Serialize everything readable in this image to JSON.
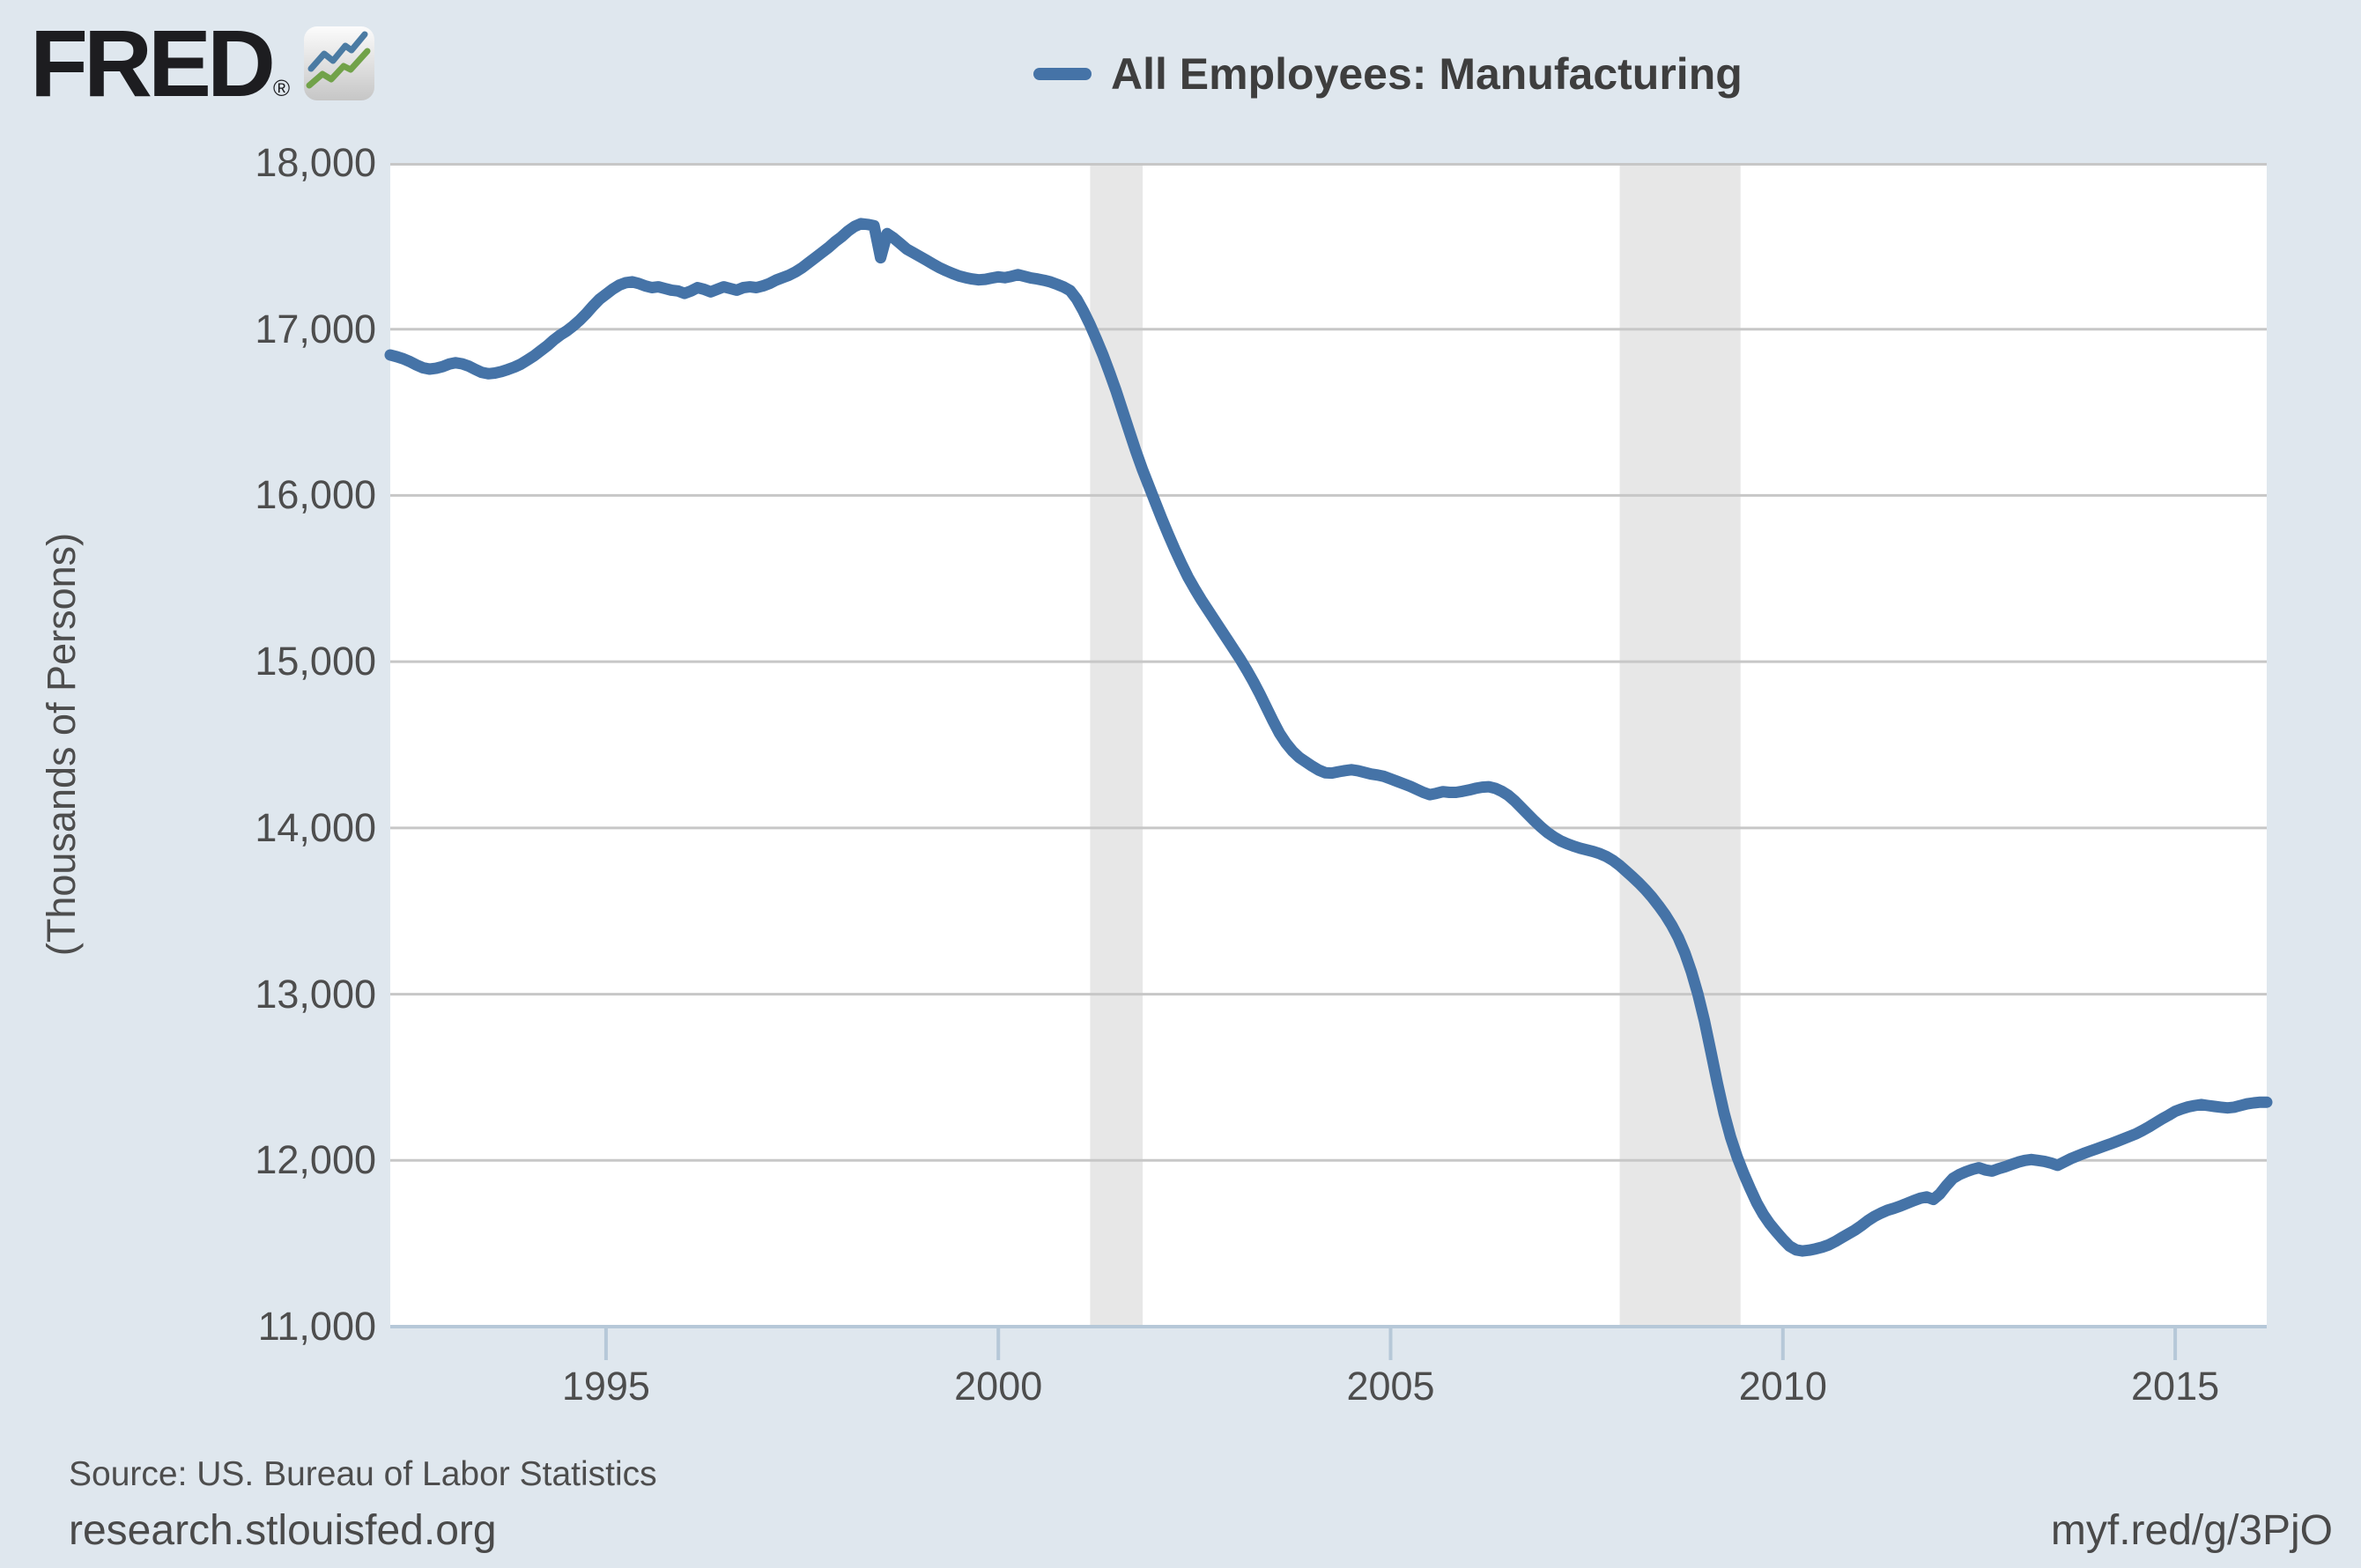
{
  "header": {
    "logo_text": "FRED",
    "logo_registered": "®"
  },
  "legend": {
    "label": "All Employees: Manufacturing",
    "swatch_color": "#4573a7"
  },
  "y_axis": {
    "title": "(Thousands of Persons)",
    "ticks": [
      {
        "value": 18000,
        "label": "18,000"
      },
      {
        "value": 17000,
        "label": "17,000"
      },
      {
        "value": 16000,
        "label": "16,000"
      },
      {
        "value": 15000,
        "label": "15,000"
      },
      {
        "value": 14000,
        "label": "14,000"
      },
      {
        "value": 13000,
        "label": "13,000"
      },
      {
        "value": 12000,
        "label": "12,000"
      },
      {
        "value": 11000,
        "label": "11,000"
      }
    ]
  },
  "x_axis": {
    "ticks": [
      {
        "value": 1995,
        "label": "1995"
      },
      {
        "value": 2000,
        "label": "2000"
      },
      {
        "value": 2005,
        "label": "2005"
      },
      {
        "value": 2010,
        "label": "2010"
      },
      {
        "value": 2015,
        "label": "2015"
      }
    ]
  },
  "footer": {
    "source": "Source: US. Bureau of Labor Statistics",
    "site": "research.stlouisfed.org",
    "short_url": "myf.red/g/3PjO"
  },
  "colors": {
    "page_background": "#dfe7ee",
    "plot_background": "#ffffff",
    "gridline": "#c7c7c7",
    "recession_band": "#e7e7e7",
    "axis_line": "#b6c8d8",
    "line": "#4573a7",
    "text": "#4d4d4d",
    "logo_blue": "#4b7ba3",
    "logo_green": "#71a249"
  },
  "chart_data": {
    "type": "line",
    "title": "All Employees: Manufacturing",
    "ylabel": "(Thousands of Persons)",
    "ylim": [
      11000,
      18000
    ],
    "grid": true,
    "legend_position": "top",
    "x_domain": [
      1992.25,
      2016.167
    ],
    "recessions": [
      {
        "start": 2001.17,
        "end": 2001.84
      },
      {
        "start": 2007.92,
        "end": 2009.46
      }
    ],
    "series": [
      {
        "name": "All Employees: Manufacturing",
        "color": "#4573a7",
        "frequency": "monthly",
        "start_year": 1992,
        "start_month": 4,
        "values": [
          16845,
          16835,
          16822,
          16805,
          16785,
          16768,
          16760,
          16765,
          16775,
          16790,
          16798,
          16792,
          16778,
          16758,
          16740,
          16732,
          16736,
          16745,
          16758,
          16772,
          16790,
          16815,
          16840,
          16870,
          16900,
          16935,
          16965,
          16990,
          17020,
          17055,
          17095,
          17140,
          17180,
          17210,
          17240,
          17265,
          17280,
          17285,
          17275,
          17260,
          17250,
          17255,
          17245,
          17235,
          17230,
          17215,
          17230,
          17250,
          17240,
          17225,
          17240,
          17255,
          17245,
          17235,
          17250,
          17255,
          17250,
          17260,
          17275,
          17295,
          17310,
          17325,
          17345,
          17370,
          17400,
          17430,
          17460,
          17490,
          17525,
          17555,
          17590,
          17618,
          17635,
          17630,
          17622,
          17430,
          17575,
          17548,
          17515,
          17482,
          17460,
          17438,
          17415,
          17392,
          17370,
          17352,
          17335,
          17320,
          17310,
          17302,
          17297,
          17300,
          17308,
          17315,
          17310,
          17318,
          17328,
          17318,
          17308,
          17302,
          17294,
          17284,
          17270,
          17254,
          17232,
          17180,
          17110,
          17030,
          16940,
          16845,
          16740,
          16630,
          16510,
          16390,
          16270,
          16160,
          16060,
          15960,
          15860,
          15765,
          15675,
          15590,
          15510,
          15440,
          15375,
          15315,
          15255,
          15195,
          15135,
          15075,
          15015,
          14950,
          14880,
          14805,
          14725,
          14645,
          14570,
          14510,
          14462,
          14425,
          14398,
          14372,
          14348,
          14332,
          14330,
          14338,
          14345,
          14350,
          14344,
          14334,
          14324,
          14318,
          14310,
          14295,
          14280,
          14265,
          14250,
          14232,
          14214,
          14200,
          14208,
          14218,
          14214,
          14214,
          14220,
          14228,
          14238,
          14245,
          14248,
          14238,
          14220,
          14196,
          14162,
          14122,
          14082,
          14042,
          14005,
          13972,
          13945,
          13922,
          13905,
          13890,
          13878,
          13868,
          13858,
          13845,
          13828,
          13805,
          13775,
          13740,
          13705,
          13668,
          13628,
          13582,
          13532,
          13478,
          13415,
          13340,
          13248,
          13135,
          13000,
          12840,
          12650,
          12460,
          12285,
          12140,
          12020,
          11920,
          11830,
          11745,
          11675,
          11618,
          11570,
          11525,
          11485,
          11462,
          11455,
          11460,
          11468,
          11478,
          11492,
          11512,
          11535,
          11558,
          11580,
          11608,
          11638,
          11663,
          11683,
          11700,
          11712,
          11726,
          11742,
          11758,
          11772,
          11780,
          11765,
          11798,
          11848,
          11892,
          11915,
          11932,
          11946,
          11956,
          11942,
          11936,
          11950,
          11962,
          11976,
          11990,
          12000,
          12005,
          12000,
          11994,
          11984,
          11970,
          11990,
          12010,
          12026,
          12042,
          12056,
          12070,
          12084,
          12098,
          12113,
          12128,
          12144,
          12160,
          12180,
          12202,
          12226,
          12250,
          12272,
          12295,
          12310,
          12322,
          12330,
          12336,
          12330,
          12325,
          12320,
          12316,
          12320,
          12330,
          12340,
          12346,
          12350,
          12350
        ]
      }
    ]
  }
}
